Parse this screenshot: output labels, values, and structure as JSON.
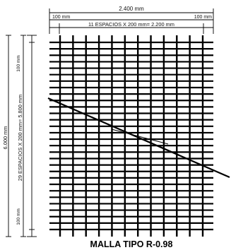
{
  "diagram": {
    "title": "MALLA TIPO R-0.98",
    "top_total": "2.400 mm",
    "top_edge_left": "100 mm",
    "top_edge_right": "100 mm",
    "top_spaces": "11 ESPACIOS X 200 mm= 2.200 mm",
    "left_total": "6.000 mm",
    "left_spaces": "29 ESPACIOS X 200 mm= 5.800 mm",
    "left_edge_top": "100 mm",
    "left_edge_bottom": "100 mm",
    "mesh": {
      "vertical_bars": 12,
      "horizontal_bars": 30,
      "spacing_mm": 200,
      "edge_mm": 100
    },
    "line_color": "#000000"
  }
}
